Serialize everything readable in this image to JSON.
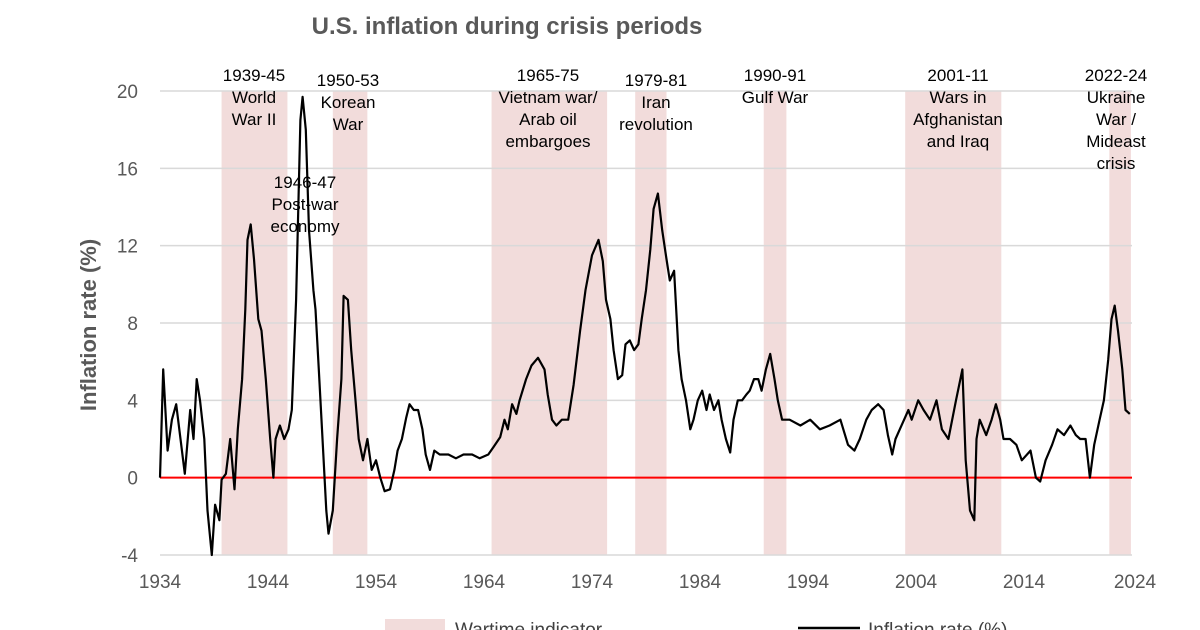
{
  "chart_data": {
    "type": "line",
    "title": "U.S. inflation during crisis periods",
    "xlabel": "",
    "ylabel": "Inflation rate (%)",
    "xlim": [
      1934,
      2024
    ],
    "ylim": [
      -4,
      20
    ],
    "xticks": [
      1934,
      1944,
      1954,
      1964,
      1974,
      1984,
      1994,
      2004,
      2014,
      2024
    ],
    "yticks": [
      -4,
      0,
      4,
      8,
      12,
      16,
      20
    ],
    "grid": true,
    "legend_position": "bottom",
    "colors": {
      "line": "#000000",
      "zero_line": "#ff0000",
      "band": "#f2dcdb",
      "grid": "#d9d9d9",
      "text": "#595959"
    },
    "legend": [
      {
        "label": "Wartime indicator",
        "kind": "band"
      },
      {
        "label": "Inflation rate (%)",
        "kind": "line"
      }
    ],
    "bands": [
      {
        "start": 1939.7,
        "end": 1945.8
      },
      {
        "start": 1950.0,
        "end": 1953.2
      },
      {
        "start": 1964.7,
        "end": 1975.4
      },
      {
        "start": 1978.0,
        "end": 1980.9
      },
      {
        "start": 1989.9,
        "end": 1992.0
      },
      {
        "start": 2003.0,
        "end": 2011.9
      },
      {
        "start": 2021.9,
        "end": 2023.9
      }
    ],
    "annotations": [
      {
        "lines": [
          "1939-45",
          "World",
          "War II"
        ]
      },
      {
        "lines": [
          "1946-47",
          "Post-war",
          "economy"
        ]
      },
      {
        "lines": [
          "1950-53",
          "Korean",
          "War"
        ]
      },
      {
        "lines": [
          "1965-75",
          "Vietnam war/",
          "Arab oil",
          "embargoes"
        ]
      },
      {
        "lines": [
          "1979-81",
          "Iran",
          "revolution"
        ]
      },
      {
        "lines": [
          "1990-91",
          "Gulf War"
        ]
      },
      {
        "lines": [
          "2001-11",
          "Wars in",
          "Afghanistan",
          "and Iraq"
        ]
      },
      {
        "lines": [
          "2022-24",
          "Ukraine",
          "War /",
          "Mideast",
          "crisis"
        ]
      }
    ],
    "series": [
      {
        "name": "Inflation rate (%)",
        "points": [
          [
            1934.0,
            0.0
          ],
          [
            1934.3,
            5.6
          ],
          [
            1934.7,
            1.4
          ],
          [
            1935.1,
            3.0
          ],
          [
            1935.5,
            3.8
          ],
          [
            1935.9,
            2.0
          ],
          [
            1936.3,
            0.2
          ],
          [
            1936.8,
            3.5
          ],
          [
            1937.1,
            2.0
          ],
          [
            1937.4,
            5.1
          ],
          [
            1937.7,
            4.0
          ],
          [
            1938.1,
            2.0
          ],
          [
            1938.4,
            -1.7
          ],
          [
            1938.8,
            -4.0
          ],
          [
            1939.1,
            -1.4
          ],
          [
            1939.5,
            -2.2
          ],
          [
            1939.7,
            -0.1
          ],
          [
            1940.1,
            0.2
          ],
          [
            1940.5,
            2.0
          ],
          [
            1940.9,
            -0.6
          ],
          [
            1941.2,
            2.5
          ],
          [
            1941.6,
            5.1
          ],
          [
            1941.9,
            8.7
          ],
          [
            1942.1,
            12.3
          ],
          [
            1942.4,
            13.1
          ],
          [
            1942.7,
            11.3
          ],
          [
            1943.1,
            8.2
          ],
          [
            1943.4,
            7.6
          ],
          [
            1943.8,
            5.1
          ],
          [
            1944.2,
            2.0
          ],
          [
            1944.5,
            0.0
          ],
          [
            1944.7,
            2.0
          ],
          [
            1945.1,
            2.7
          ],
          [
            1945.5,
            2.0
          ],
          [
            1945.9,
            2.5
          ],
          [
            1946.2,
            3.5
          ],
          [
            1946.6,
            9.2
          ],
          [
            1947.0,
            18.5
          ],
          [
            1947.2,
            19.7
          ],
          [
            1947.5,
            18.0
          ],
          [
            1947.8,
            12.8
          ],
          [
            1948.2,
            9.7
          ],
          [
            1948.4,
            8.7
          ],
          [
            1948.7,
            5.6
          ],
          [
            1949.0,
            2.5
          ],
          [
            1949.4,
            -1.7
          ],
          [
            1949.6,
            -2.9
          ],
          [
            1950.0,
            -1.7
          ],
          [
            1950.4,
            2.0
          ],
          [
            1950.8,
            5.1
          ],
          [
            1951.0,
            9.4
          ],
          [
            1951.4,
            9.2
          ],
          [
            1951.7,
            6.6
          ],
          [
            1952.1,
            4.0
          ],
          [
            1952.4,
            2.0
          ],
          [
            1952.8,
            0.9
          ],
          [
            1953.2,
            2.0
          ],
          [
            1953.6,
            0.4
          ],
          [
            1954.0,
            0.9
          ],
          [
            1954.4,
            0.0
          ],
          [
            1954.8,
            -0.7
          ],
          [
            1955.3,
            -0.6
          ],
          [
            1955.7,
            0.4
          ],
          [
            1956.0,
            1.4
          ],
          [
            1956.4,
            2.0
          ],
          [
            1956.8,
            3.1
          ],
          [
            1957.1,
            3.8
          ],
          [
            1957.5,
            3.5
          ],
          [
            1957.9,
            3.5
          ],
          [
            1958.3,
            2.5
          ],
          [
            1958.6,
            1.2
          ],
          [
            1959.0,
            0.4
          ],
          [
            1959.4,
            1.4
          ],
          [
            1959.9,
            1.2
          ],
          [
            1960.7,
            1.2
          ],
          [
            1961.4,
            1.0
          ],
          [
            1962.1,
            1.2
          ],
          [
            1962.9,
            1.2
          ],
          [
            1963.6,
            1.0
          ],
          [
            1964.4,
            1.2
          ],
          [
            1964.9,
            1.6
          ],
          [
            1965.5,
            2.1
          ],
          [
            1965.9,
            3.0
          ],
          [
            1966.2,
            2.5
          ],
          [
            1966.6,
            3.8
          ],
          [
            1967.0,
            3.3
          ],
          [
            1967.3,
            4.0
          ],
          [
            1967.9,
            5.1
          ],
          [
            1968.4,
            5.8
          ],
          [
            1969.0,
            6.2
          ],
          [
            1969.6,
            5.6
          ],
          [
            1969.9,
            4.3
          ],
          [
            1970.3,
            3.0
          ],
          [
            1970.7,
            2.7
          ],
          [
            1971.2,
            3.0
          ],
          [
            1971.8,
            3.0
          ],
          [
            1972.3,
            4.8
          ],
          [
            1972.9,
            7.6
          ],
          [
            1973.4,
            9.7
          ],
          [
            1974.0,
            11.5
          ],
          [
            1974.6,
            12.3
          ],
          [
            1975.0,
            11.2
          ],
          [
            1975.3,
            9.2
          ],
          [
            1975.7,
            8.2
          ],
          [
            1976.0,
            6.6
          ],
          [
            1976.4,
            5.1
          ],
          [
            1976.8,
            5.3
          ],
          [
            1977.1,
            6.9
          ],
          [
            1977.5,
            7.1
          ],
          [
            1977.9,
            6.6
          ],
          [
            1978.3,
            6.9
          ],
          [
            1978.6,
            8.2
          ],
          [
            1979.0,
            9.7
          ],
          [
            1979.4,
            11.8
          ],
          [
            1979.7,
            13.9
          ],
          [
            1980.1,
            14.7
          ],
          [
            1980.5,
            12.8
          ],
          [
            1980.9,
            11.3
          ],
          [
            1981.2,
            10.2
          ],
          [
            1981.6,
            10.7
          ],
          [
            1982.0,
            6.6
          ],
          [
            1982.3,
            5.1
          ],
          [
            1982.7,
            4.0
          ],
          [
            1983.1,
            2.5
          ],
          [
            1983.4,
            3.0
          ],
          [
            1983.8,
            4.0
          ],
          [
            1984.2,
            4.5
          ],
          [
            1984.6,
            3.5
          ],
          [
            1984.9,
            4.3
          ],
          [
            1985.3,
            3.5
          ],
          [
            1985.7,
            4.0
          ],
          [
            1986.0,
            3.0
          ],
          [
            1986.4,
            2.0
          ],
          [
            1986.8,
            1.3
          ],
          [
            1987.1,
            3.0
          ],
          [
            1987.5,
            4.0
          ],
          [
            1987.9,
            4.0
          ],
          [
            1988.3,
            4.3
          ],
          [
            1988.6,
            4.5
          ],
          [
            1989.0,
            5.1
          ],
          [
            1989.4,
            5.1
          ],
          [
            1989.7,
            4.5
          ],
          [
            1990.1,
            5.6
          ],
          [
            1990.5,
            6.4
          ],
          [
            1990.9,
            5.1
          ],
          [
            1991.2,
            4.0
          ],
          [
            1991.6,
            3.0
          ],
          [
            1992.3,
            3.0
          ],
          [
            1993.3,
            2.7
          ],
          [
            1994.2,
            3.0
          ],
          [
            1995.1,
            2.5
          ],
          [
            1996.0,
            2.7
          ],
          [
            1997.0,
            3.0
          ],
          [
            1997.7,
            1.7
          ],
          [
            1998.3,
            1.4
          ],
          [
            1998.8,
            2.0
          ],
          [
            1999.4,
            3.0
          ],
          [
            1999.9,
            3.5
          ],
          [
            2000.5,
            3.8
          ],
          [
            2001.0,
            3.5
          ],
          [
            2001.4,
            2.2
          ],
          [
            2001.8,
            1.2
          ],
          [
            2002.1,
            2.0
          ],
          [
            2002.5,
            2.5
          ],
          [
            2002.9,
            3.0
          ],
          [
            2003.3,
            3.5
          ],
          [
            2003.6,
            3.0
          ],
          [
            2004.2,
            4.0
          ],
          [
            2004.7,
            3.5
          ],
          [
            2005.3,
            3.0
          ],
          [
            2005.9,
            4.0
          ],
          [
            2006.4,
            2.5
          ],
          [
            2007.0,
            2.0
          ],
          [
            2007.7,
            4.0
          ],
          [
            2008.3,
            5.6
          ],
          [
            2008.6,
            0.9
          ],
          [
            2009.0,
            -1.7
          ],
          [
            2009.4,
            -2.2
          ],
          [
            2009.6,
            2.0
          ],
          [
            2009.9,
            3.0
          ],
          [
            2010.5,
            2.2
          ],
          [
            2011.0,
            3.0
          ],
          [
            2011.4,
            3.8
          ],
          [
            2011.8,
            3.0
          ],
          [
            2012.1,
            2.0
          ],
          [
            2012.7,
            2.0
          ],
          [
            2013.3,
            1.7
          ],
          [
            2013.8,
            0.9
          ],
          [
            2014.6,
            1.4
          ],
          [
            2015.1,
            0.0
          ],
          [
            2015.5,
            -0.2
          ],
          [
            2016.0,
            0.9
          ],
          [
            2016.6,
            1.7
          ],
          [
            2017.1,
            2.5
          ],
          [
            2017.7,
            2.2
          ],
          [
            2018.3,
            2.7
          ],
          [
            2018.8,
            2.2
          ],
          [
            2019.2,
            2.0
          ],
          [
            2019.7,
            2.0
          ],
          [
            2020.1,
            0.0
          ],
          [
            2020.5,
            1.7
          ],
          [
            2021.0,
            3.0
          ],
          [
            2021.4,
            4.0
          ],
          [
            2021.8,
            6.1
          ],
          [
            2022.1,
            8.2
          ],
          [
            2022.4,
            8.9
          ],
          [
            2022.7,
            7.6
          ],
          [
            2023.1,
            5.6
          ],
          [
            2023.4,
            3.5
          ],
          [
            2023.8,
            3.3
          ]
        ]
      }
    ]
  }
}
